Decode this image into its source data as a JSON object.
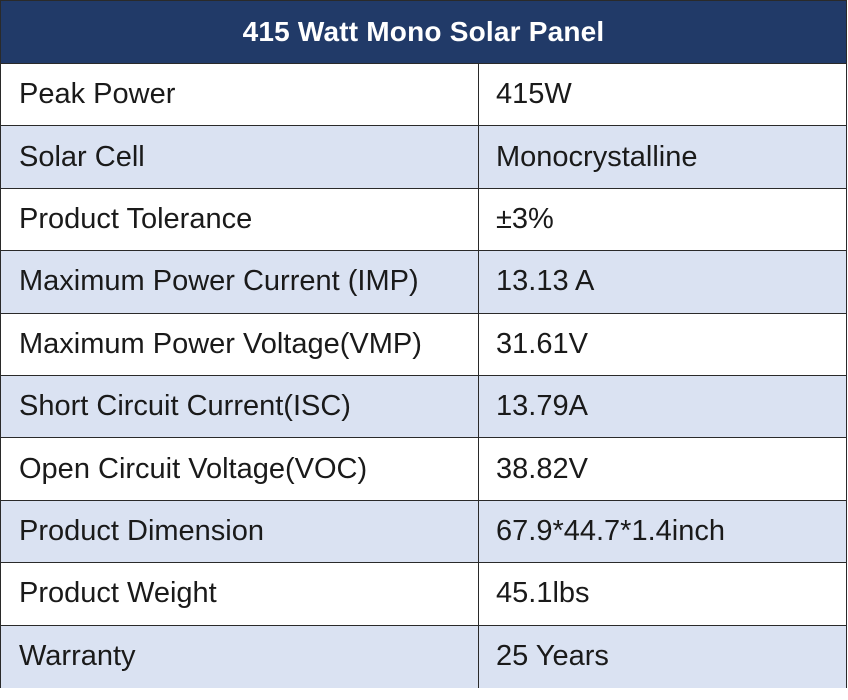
{
  "table": {
    "title": "415 Watt Mono Solar Panel",
    "header_color": "#213a68",
    "alt_row_color": "#dae2f2",
    "rows": [
      {
        "label": "Peak Power",
        "value": "415W"
      },
      {
        "label": "Solar Cell",
        "value": "Monocrystalline"
      },
      {
        "label": "Product Tolerance",
        "value": "±3%"
      },
      {
        "label": "Maximum Power Current (IMP)",
        "value": "13.13 A"
      },
      {
        "label": "Maximum Power Voltage(VMP)",
        "value": "31.61V"
      },
      {
        "label": "Short Circuit Current(ISC)",
        "value": "13.79A"
      },
      {
        "label": "Open Circuit Voltage(VOC)",
        "value": "38.82V"
      },
      {
        "label": "Product Dimension",
        "value": "67.9*44.7*1.4inch"
      },
      {
        "label": "Product Weight",
        "value": "45.1lbs"
      },
      {
        "label": "Warranty",
        "value": "25 Years"
      }
    ]
  }
}
